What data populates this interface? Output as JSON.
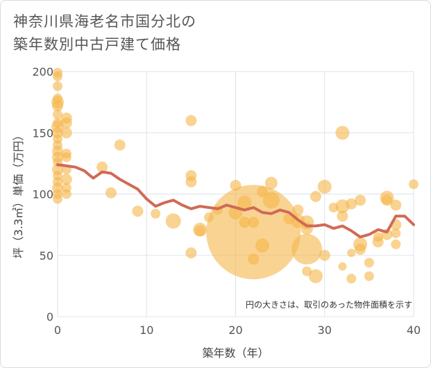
{
  "header": {
    "title_line1": "神奈川県海老名市国分北の",
    "title_line2": "築年数別中古戸建て価格"
  },
  "chart_data": {
    "type": "scatter",
    "title": "神奈川県海老名市国分北の築年数別中古戸建て価格",
    "xlabel": "築年数（年）",
    "ylabel": "坪（3.3㎡）単価（万円）",
    "xlim": [
      0,
      40
    ],
    "ylim": [
      0,
      200
    ],
    "x_ticks": [
      0,
      10,
      20,
      30,
      40
    ],
    "y_ticks": [
      0,
      50,
      100,
      150,
      200
    ],
    "note": "円の大きさは、取引のあった物件面積を示す",
    "colors": {
      "bubble": "#f5b54a",
      "line": "#d06a55",
      "grid": "#dde3ea"
    },
    "bubbles": [
      {
        "x": 0,
        "y": 199,
        "s": 7
      },
      {
        "x": 0,
        "y": 196,
        "s": 7
      },
      {
        "x": 0,
        "y": 188,
        "s": 7
      },
      {
        "x": 0,
        "y": 178,
        "s": 7
      },
      {
        "x": 0,
        "y": 175,
        "s": 9
      },
      {
        "x": 0,
        "y": 172,
        "s": 8
      },
      {
        "x": 0,
        "y": 165,
        "s": 7
      },
      {
        "x": 0,
        "y": 158,
        "s": 7
      },
      {
        "x": 0,
        "y": 155,
        "s": 9
      },
      {
        "x": 0,
        "y": 150,
        "s": 8
      },
      {
        "x": 0,
        "y": 145,
        "s": 7
      },
      {
        "x": 0,
        "y": 140,
        "s": 7
      },
      {
        "x": 0,
        "y": 135,
        "s": 8
      },
      {
        "x": 0,
        "y": 130,
        "s": 8
      },
      {
        "x": 0,
        "y": 126,
        "s": 7
      },
      {
        "x": 0,
        "y": 120,
        "s": 8
      },
      {
        "x": 0,
        "y": 115,
        "s": 7
      },
      {
        "x": 0,
        "y": 110,
        "s": 7
      },
      {
        "x": 0,
        "y": 105,
        "s": 8
      },
      {
        "x": 0,
        "y": 100,
        "s": 7
      },
      {
        "x": 0,
        "y": 96,
        "s": 7
      },
      {
        "x": 1,
        "y": 162,
        "s": 8
      },
      {
        "x": 1,
        "y": 158,
        "s": 8
      },
      {
        "x": 1,
        "y": 150,
        "s": 8
      },
      {
        "x": 1,
        "y": 133,
        "s": 7
      },
      {
        "x": 1,
        "y": 130,
        "s": 7
      },
      {
        "x": 1,
        "y": 120,
        "s": 7
      },
      {
        "x": 1,
        "y": 112,
        "s": 8
      },
      {
        "x": 1,
        "y": 105,
        "s": 7
      },
      {
        "x": 1,
        "y": 100,
        "s": 7
      },
      {
        "x": 5,
        "y": 122,
        "s": 8
      },
      {
        "x": 6,
        "y": 101,
        "s": 8
      },
      {
        "x": 7,
        "y": 140,
        "s": 8
      },
      {
        "x": 9,
        "y": 86,
        "s": 8
      },
      {
        "x": 11,
        "y": 84,
        "s": 7
      },
      {
        "x": 13,
        "y": 78,
        "s": 11
      },
      {
        "x": 15,
        "y": 160,
        "s": 8
      },
      {
        "x": 15,
        "y": 115,
        "s": 8
      },
      {
        "x": 15,
        "y": 110,
        "s": 8
      },
      {
        "x": 15,
        "y": 52,
        "s": 8
      },
      {
        "x": 16,
        "y": 71,
        "s": 10
      },
      {
        "x": 16,
        "y": 70,
        "s": 8
      },
      {
        "x": 17,
        "y": 81,
        "s": 7
      },
      {
        "x": 18,
        "y": 87,
        "s": 7
      },
      {
        "x": 20,
        "y": 85,
        "s": 10
      },
      {
        "x": 20,
        "y": 107,
        "s": 8
      },
      {
        "x": 21,
        "y": 93,
        "s": 10
      },
      {
        "x": 21,
        "y": 77,
        "s": 8
      },
      {
        "x": 22,
        "y": 77,
        "s": 8
      },
      {
        "x": 22,
        "y": 69,
        "s": 68
      },
      {
        "x": 22,
        "y": 47,
        "s": 8
      },
      {
        "x": 23,
        "y": 102,
        "s": 8
      },
      {
        "x": 23,
        "y": 58,
        "s": 10
      },
      {
        "x": 24,
        "y": 109,
        "s": 9
      },
      {
        "x": 24,
        "y": 95,
        "s": 12
      },
      {
        "x": 26,
        "y": 80,
        "s": 8
      },
      {
        "x": 27,
        "y": 87,
        "s": 8
      },
      {
        "x": 27,
        "y": 78,
        "s": 10
      },
      {
        "x": 28,
        "y": 77,
        "s": 10
      },
      {
        "x": 28,
        "y": 72,
        "s": 9
      },
      {
        "x": 28,
        "y": 55,
        "s": 22
      },
      {
        "x": 28,
        "y": 37,
        "s": 7
      },
      {
        "x": 29,
        "y": 98,
        "s": 8
      },
      {
        "x": 29,
        "y": 33,
        "s": 10
      },
      {
        "x": 30,
        "y": 106,
        "s": 10
      },
      {
        "x": 30,
        "y": 50,
        "s": 8
      },
      {
        "x": 31,
        "y": 89,
        "s": 7
      },
      {
        "x": 32,
        "y": 150,
        "s": 10
      },
      {
        "x": 32,
        "y": 90,
        "s": 10
      },
      {
        "x": 32,
        "y": 82,
        "s": 8
      },
      {
        "x": 32,
        "y": 41,
        "s": 6
      },
      {
        "x": 33,
        "y": 92,
        "s": 8
      },
      {
        "x": 33,
        "y": 52,
        "s": 6
      },
      {
        "x": 33,
        "y": 31,
        "s": 7
      },
      {
        "x": 34,
        "y": 95,
        "s": 8
      },
      {
        "x": 34,
        "y": 59,
        "s": 10
      },
      {
        "x": 34,
        "y": 55,
        "s": 8
      },
      {
        "x": 35,
        "y": 44,
        "s": 7
      },
      {
        "x": 35,
        "y": 33,
        "s": 7
      },
      {
        "x": 36,
        "y": 61,
        "s": 8
      },
      {
        "x": 36,
        "y": 65,
        "s": 7
      },
      {
        "x": 37,
        "y": 97,
        "s": 10
      },
      {
        "x": 37,
        "y": 95,
        "s": 8
      },
      {
        "x": 37,
        "y": 67,
        "s": 8
      },
      {
        "x": 38,
        "y": 91,
        "s": 8
      },
      {
        "x": 38,
        "y": 75,
        "s": 8
      },
      {
        "x": 38,
        "y": 68,
        "s": 7
      },
      {
        "x": 38,
        "y": 59,
        "s": 7
      },
      {
        "x": 40,
        "y": 108,
        "s": 7
      }
    ],
    "trend": {
      "x": [
        0,
        1,
        2,
        3,
        4,
        5,
        6,
        7,
        8,
        9,
        10,
        11,
        12,
        13,
        14,
        15,
        16,
        17,
        18,
        19,
        20,
        21,
        22,
        23,
        24,
        25,
        26,
        27,
        28,
        29,
        30,
        31,
        32,
        33,
        34,
        35,
        36,
        37,
        38,
        39,
        40
      ],
      "y": [
        124,
        123,
        122,
        119,
        113,
        118,
        117,
        112,
        108,
        104,
        96,
        90,
        93,
        95,
        91,
        88,
        90,
        89,
        88,
        91,
        89,
        87,
        89,
        85,
        84,
        87,
        85,
        79,
        74,
        74,
        75,
        72,
        74,
        70,
        65,
        67,
        71,
        69,
        82,
        82,
        75
      ]
    }
  }
}
